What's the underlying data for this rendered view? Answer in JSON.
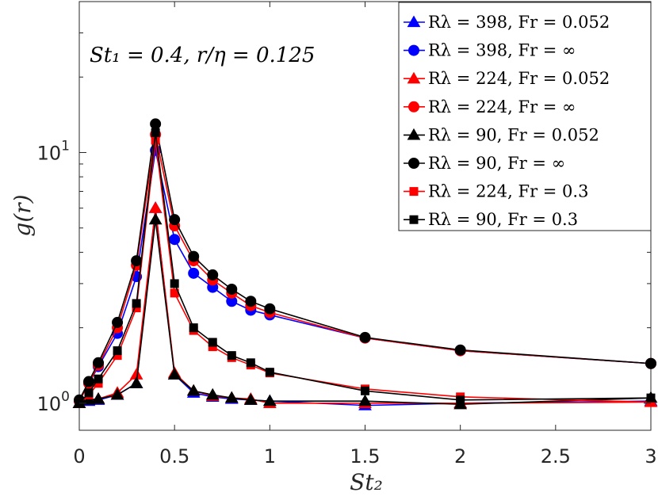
{
  "chart_data": {
    "type": "line",
    "title": "",
    "xlabel": "St₂",
    "ylabel": "g(r)",
    "xlim": [
      0,
      3
    ],
    "ylim": [
      0.78,
      40
    ],
    "yscale": "log",
    "grid": false,
    "legend_position": "top-right",
    "annotation": "St₁ = 0.4, r/η = 0.125",
    "x_ticks": [
      0,
      0.5,
      1,
      1.5,
      2,
      2.5,
      3
    ],
    "x_tick_labels": [
      "0",
      "0.5",
      "1",
      "1.5",
      "2",
      "2.5",
      "3"
    ],
    "y_ticks": [
      1,
      10
    ],
    "y_tick_labels": [
      {
        "base": "10",
        "exp": "0"
      },
      {
        "base": "10",
        "exp": "1"
      }
    ],
    "series": [
      {
        "name": "Rλ = 398, Fr = 0.052",
        "color": "#0000ff",
        "marker": "triangle",
        "x": [
          0,
          0.05,
          0.1,
          0.2,
          0.3,
          0.4,
          0.5,
          0.6,
          0.7,
          0.8,
          0.9,
          1,
          1.5,
          2,
          3
        ],
        "y": [
          1.0,
          1.02,
          1.03,
          1.08,
          1.2,
          6.0,
          1.3,
          1.1,
          1.06,
          1.04,
          1.03,
          1.02,
          0.98,
          1.0,
          1.02
        ]
      },
      {
        "name": "Rλ = 398, Fr = ∞",
        "color": "#0000ff",
        "marker": "circle",
        "x": [
          0,
          0.05,
          0.1,
          0.2,
          0.3,
          0.4,
          0.5,
          0.6,
          0.7,
          0.8,
          0.9,
          1,
          1.5,
          2,
          3
        ],
        "y": [
          1.02,
          1.2,
          1.4,
          1.9,
          3.2,
          10.2,
          4.5,
          3.3,
          2.9,
          2.55,
          2.35,
          2.25,
          1.82,
          1.62,
          1.44
        ]
      },
      {
        "name": "Rλ = 224, Fr = 0.052",
        "color": "#ff0000",
        "marker": "triangle",
        "x": [
          0,
          0.05,
          0.1,
          0.2,
          0.3,
          0.4,
          0.5,
          0.6,
          0.7,
          0.8,
          0.9,
          1,
          1.5,
          2,
          3
        ],
        "y": [
          1.0,
          1.03,
          1.04,
          1.1,
          1.3,
          6.0,
          1.32,
          1.12,
          1.07,
          1.05,
          1.04,
          1.0,
          1.0,
          1.0,
          1.01
        ]
      },
      {
        "name": "Rλ = 224, Fr = ∞",
        "color": "#ff0000",
        "marker": "circle",
        "x": [
          0,
          0.05,
          0.1,
          0.2,
          0.3,
          0.4,
          0.5,
          0.6,
          0.7,
          0.8,
          0.9,
          1,
          1.5,
          2,
          3
        ],
        "y": [
          1.02,
          1.2,
          1.42,
          2.0,
          3.55,
          11.8,
          5.1,
          3.7,
          3.1,
          2.75,
          2.45,
          2.3,
          1.82,
          1.62,
          1.44
        ]
      },
      {
        "name": "Rλ = 90, Fr = 0.052",
        "color": "#000000",
        "marker": "triangle",
        "x": [
          0,
          0.05,
          0.1,
          0.2,
          0.3,
          0.4,
          0.5,
          0.6,
          0.7,
          0.8,
          0.9,
          1,
          1.5,
          2,
          3
        ],
        "y": [
          1.0,
          1.03,
          1.04,
          1.08,
          1.2,
          5.4,
          1.3,
          1.12,
          1.08,
          1.05,
          1.03,
          1.02,
          1.02,
          0.99,
          1.05
        ]
      },
      {
        "name": "Rλ = 90, Fr = ∞",
        "color": "#000000",
        "marker": "circle",
        "x": [
          0,
          0.05,
          0.1,
          0.2,
          0.3,
          0.4,
          0.5,
          0.6,
          0.7,
          0.8,
          0.9,
          1,
          1.5,
          2,
          3
        ],
        "y": [
          1.03,
          1.22,
          1.45,
          2.1,
          3.7,
          13.0,
          5.4,
          3.85,
          3.25,
          2.85,
          2.55,
          2.38,
          1.83,
          1.63,
          1.44
        ]
      },
      {
        "name": "Rλ = 224, Fr = 0.3",
        "color": "#ff0000",
        "marker": "square",
        "x": [
          0,
          0.05,
          0.1,
          0.2,
          0.3,
          0.4,
          0.5,
          0.6,
          0.7,
          0.8,
          0.9,
          1,
          1.5,
          2,
          3
        ],
        "y": [
          1.0,
          1.08,
          1.2,
          1.55,
          2.4,
          11.2,
          2.75,
          1.95,
          1.68,
          1.52,
          1.42,
          1.32,
          1.14,
          1.06,
          1.01
        ]
      },
      {
        "name": "Rλ = 90, Fr = 0.3",
        "color": "#000000",
        "marker": "square",
        "x": [
          0,
          0.05,
          0.1,
          0.2,
          0.3,
          0.4,
          0.5,
          0.6,
          0.7,
          0.8,
          0.9,
          1,
          1.5,
          2,
          3
        ],
        "y": [
          1.0,
          1.1,
          1.25,
          1.62,
          2.5,
          12.0,
          3.0,
          2.0,
          1.75,
          1.55,
          1.45,
          1.33,
          1.12,
          1.03,
          1.05
        ]
      }
    ]
  }
}
